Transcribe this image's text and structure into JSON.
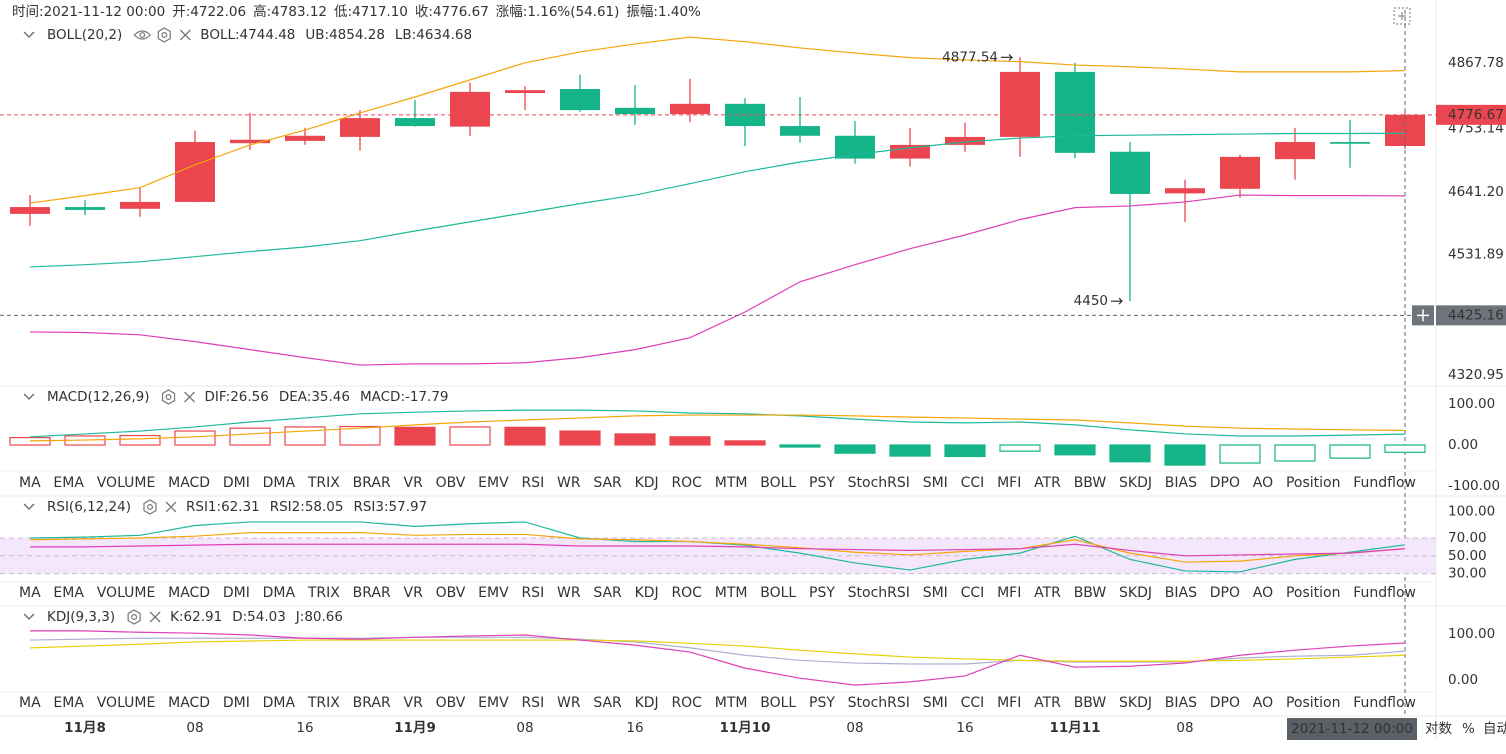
{
  "chart_data": {
    "type": "candlestick",
    "info": [
      {
        "label": "时间:",
        "value": "2021-11-12 00:00"
      },
      {
        "label": "开:",
        "value": "4722.06"
      },
      {
        "label": "高:",
        "value": "4783.12"
      },
      {
        "label": "低:",
        "value": "4717.10"
      },
      {
        "label": "收:",
        "value": "4776.67"
      },
      {
        "label": "涨幅:",
        "value": "1.16%(54.61)"
      },
      {
        "label": "振幅:",
        "value": "1.40%"
      }
    ],
    "categories": [
      null,
      "11月8",
      null,
      "08",
      null,
      "16",
      null,
      "11月9",
      null,
      "08",
      null,
      "16",
      null,
      "11月10",
      null,
      "08",
      null,
      "16",
      null,
      "11月11",
      null,
      "08",
      null,
      null,
      null,
      null
    ],
    "open": [
      4603,
      4615,
      4612,
      4624,
      4727,
      4731,
      4738,
      4771,
      4756,
      4815,
      4822,
      4789,
      4778,
      4796,
      4757,
      4740,
      4700,
      4724,
      4738,
      4852,
      4712,
      4639,
      4647,
      4699,
      4729,
      4722.06
    ],
    "high": [
      4636,
      4627,
      4649,
      4749,
      4780,
      4754,
      4785,
      4803,
      4833,
      4827,
      4847,
      4829,
      4840,
      4806,
      4808,
      4766,
      4754,
      4763,
      4877.54,
      4868,
      4729,
      4663,
      4707,
      4754,
      4768,
      4783.12
    ],
    "low": [
      4582,
      4601,
      4598,
      4624,
      4715,
      4724,
      4714,
      4756,
      4740,
      4785,
      4782,
      4759,
      4764,
      4722,
      4728,
      4691,
      4686,
      4712,
      4703,
      4701,
      4450,
      4589,
      4631,
      4663,
      4684,
      4717.1
    ],
    "close": [
      4615,
      4610,
      4624,
      4729,
      4733,
      4740,
      4771,
      4757,
      4817,
      4820,
      4785,
      4778,
      4796,
      4757,
      4740,
      4700,
      4724,
      4738,
      4852,
      4710,
      4638,
      4648,
      4703,
      4729,
      4726,
      4776.67
    ],
    "up_color": "#eb4650",
    "down_color": "#15b489",
    "ylim": [
      4303,
      4943
    ],
    "yticks": [
      4320.95,
      4531.89,
      {
        "value": 4641.2,
        "label": "4641.20"
      },
      4753.14,
      4867.78
    ],
    "crosshair": {
      "time": "2021-11-12 00:00",
      "price": 4425.16
    },
    "boll": {
      "label": "BOLL(20,2)",
      "series": [
        {
          "name": "BOLL:",
          "color": "#1fb99b",
          "values": [
            4510,
            4514,
            4519,
            4528,
            4537,
            4545,
            4556,
            4573,
            4589,
            4605,
            4621,
            4636,
            4656,
            4677,
            4694,
            4707,
            4719,
            4729,
            4736,
            4740,
            4741,
            4742,
            4743,
            4744,
            4744,
            4744.48
          ]
        },
        {
          "name": "UB:",
          "color": "#f5a50a",
          "values": [
            4622,
            4635,
            4649,
            4689,
            4724,
            4750,
            4780,
            4808,
            4838,
            4868,
            4887,
            4901,
            4913,
            4905,
            4894,
            4885,
            4877,
            4873,
            4870,
            4864,
            4861,
            4857,
            4852,
            4852,
            4852,
            4854.28
          ]
        },
        {
          "name": "LB:",
          "color": "#df3fb6",
          "values": [
            4396,
            4395,
            4391,
            4379,
            4365,
            4351,
            4338,
            4340,
            4340,
            4342,
            4351,
            4365,
            4386,
            4431,
            4484,
            4514,
            4542,
            4566,
            4593,
            4614,
            4617,
            4624,
            4636,
            4635,
            4635,
            4634.68
          ]
        }
      ]
    },
    "macd": {
      "label": "MACD(12,26,9)",
      "active_tab": 3,
      "ylim": [
        -61,
        139
      ],
      "yticks": [
        {
          "value": 100,
          "label": "100.00"
        },
        {
          "value": 0,
          "label": "0.00"
        },
        {
          "value": -100,
          "label": "-100.00"
        }
      ],
      "series": [
        {
          "name": "DIF:",
          "color": "#1fb99b",
          "values": [
            20,
            27,
            34,
            44,
            56,
            66,
            76,
            80,
            83,
            85,
            85,
            83,
            78,
            76,
            71,
            63,
            56,
            54,
            56,
            49,
            37,
            27,
            22,
            22,
            24,
            26.56
          ]
        },
        {
          "name": "DEA:",
          "color": "#f5a50a",
          "values": [
            10,
            12,
            15,
            20,
            27,
            34,
            41,
            49,
            56,
            61,
            66,
            71,
            73,
            73,
            73,
            71,
            68,
            66,
            63,
            61,
            54,
            46,
            41,
            39,
            37,
            35.46
          ]
        },
        {
          "name": "MACD:",
          "color": "#15b489",
          "histogram": true,
          "values": [
            18,
            22,
            23,
            34,
            41,
            44,
            45,
            43,
            44,
            43,
            34,
            27,
            20,
            10,
            -5,
            -20,
            -27,
            -28,
            -15,
            -24,
            -41,
            -49,
            -44,
            -39,
            -32,
            -17.79
          ]
        }
      ]
    },
    "rsi": {
      "label": "RSI(6,12,24)",
      "active_tab": 11,
      "ylim": [
        20.6,
        116
      ],
      "band": [
        30,
        70
      ],
      "band_color": "#f4e6fb",
      "yticks": [
        {
          "value": 100,
          "label": "100.00"
        },
        {
          "value": 70,
          "label": "70.00"
        },
        {
          "value": 50,
          "label": "50.00"
        },
        {
          "value": 30,
          "label": "30.00"
        }
      ],
      "series": [
        {
          "name": "RSI1:",
          "color": "#1fb99b",
          "values": [
            70,
            71,
            73,
            84,
            88,
            88,
            88,
            83,
            86,
            88,
            70,
            66,
            66,
            62,
            53,
            42,
            34,
            46,
            53,
            72,
            46,
            33,
            32,
            46,
            54,
            62.31
          ]
        },
        {
          "name": "RSI2:",
          "color": "#f5a50a",
          "values": [
            68,
            69,
            70,
            72,
            76,
            76,
            76,
            73,
            74,
            74,
            69,
            68,
            66,
            63,
            59,
            54,
            51,
            55,
            58,
            68,
            53,
            43,
            44,
            50,
            53,
            58.05
          ]
        },
        {
          "name": "RSI3:",
          "color": "#df3fb6",
          "values": [
            60,
            60,
            61,
            62,
            63,
            63,
            63,
            63,
            63,
            63,
            61,
            61,
            61,
            60,
            58,
            57,
            56,
            57,
            58,
            63,
            56,
            50,
            51,
            52,
            53,
            57.97
          ]
        }
      ]
    },
    "kdj": {
      "label": "KDJ(9,3,3)",
      "active_tab": 14,
      "ylim": [
        -26,
        159
      ],
      "yticks": [
        {
          "value": 100,
          "label": "100.00"
        },
        {
          "value": 0,
          "label": "0.00"
        }
      ],
      "series": [
        {
          "name": "K:",
          "color": "#aeb0d2",
          "values": [
            87,
            89,
            91,
            91,
            91,
            91,
            91,
            93,
            93,
            93,
            89,
            83,
            70,
            54,
            43,
            37,
            35,
            35,
            43,
            39,
            39,
            39,
            48,
            52,
            54,
            62.91
          ]
        },
        {
          "name": "D:",
          "color": "#e8cf0a",
          "values": [
            70,
            74,
            78,
            83,
            85,
            87,
            87,
            87,
            87,
            87,
            87,
            85,
            80,
            74,
            65,
            57,
            50,
            46,
            43,
            41,
            41,
            41,
            43,
            46,
            50,
            54.03
          ]
        },
        {
          "name": "J:",
          "color": "#df3fb6",
          "values": [
            107,
            107,
            104,
            102,
            98,
            91,
            89,
            93,
            96,
            98,
            87,
            76,
            61,
            26,
            4,
            -11,
            -4,
            9,
            54,
            28,
            30,
            37,
            54,
            65,
            74,
            80.66
          ]
        }
      ]
    },
    "indicator_tabs": [
      "MA",
      "EMA",
      "VOLUME",
      "MACD",
      "DMI",
      "DMA",
      "TRIX",
      "BRAR",
      "VR",
      "OBV",
      "EMV",
      "RSI",
      "WR",
      "SAR",
      "KDJ",
      "ROC",
      "MTM",
      "BOLL",
      "PSY",
      "StochRSI",
      "SMI",
      "CCI",
      "MFI",
      "ATR",
      "BBW",
      "SKDJ",
      "BIAS",
      "DPO",
      "AO",
      "Position",
      "Fundflow"
    ],
    "axis_options": [
      "对数",
      "%",
      "自动"
    ]
  }
}
